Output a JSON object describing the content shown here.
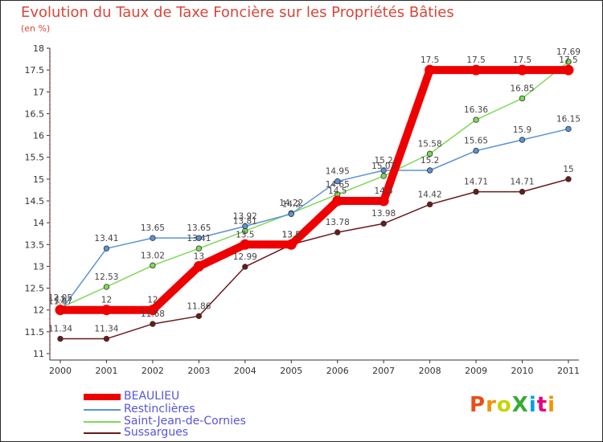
{
  "title": "Evolution du Taux de Taxe Foncière sur les Propriétés Bâties",
  "unit": "(en %)",
  "logo": "ProXiti",
  "logo_colors": [
    "#e94e1b",
    "#f39200",
    "#c8d400",
    "#3aaa35",
    "#00a0e3",
    "#e5007d",
    "#f39200"
  ],
  "chart_data": {
    "type": "line",
    "title": "Evolution du Taux de Taxe Foncière sur les Propriétés Bâties",
    "ylabel": "(en %)",
    "xlabel": "",
    "x": [
      "2000",
      "2001",
      "2002",
      "2003",
      "2004",
      "2005",
      "2006",
      "2007",
      "2008",
      "2009",
      "2010",
      "2011"
    ],
    "ylim": [
      11,
      18
    ],
    "yticks": [
      "11",
      "11.5",
      "12",
      "12.5",
      "13",
      "13.5",
      "14",
      "14.5",
      "15",
      "15.5",
      "16",
      "16.5",
      "17",
      "17.5",
      "18"
    ],
    "series": [
      {
        "name": "Sussargues",
        "color": "#6b1a1a",
        "values": [
          11.34,
          11.34,
          11.68,
          11.86,
          12.99,
          13.5,
          13.78,
          13.98,
          14.42,
          14.71,
          14.71,
          15
        ],
        "labels": [
          "11.34",
          "11.34",
          "11.68",
          "11.86",
          "12.99",
          "13.5",
          "13.78",
          "13.98",
          "14.42",
          "14.71",
          "14.71",
          "15"
        ]
      },
      {
        "name": "Saint-Jean-de-Cornies",
        "color": "#7ed957",
        "values": [
          12.05,
          12.53,
          13.02,
          13.41,
          13.81,
          14.22,
          14.65,
          15.07,
          15.58,
          16.36,
          16.85,
          17.69
        ],
        "labels": [
          "12.05",
          "12.53",
          "13.02",
          "13.41",
          "13.81",
          "14.22",
          "14.65",
          "15.07",
          "15.58",
          "16.36",
          "16.85",
          "17.69"
        ]
      },
      {
        "name": "Restinclières",
        "color": "#5b93d3",
        "values": [
          11.97,
          13.41,
          13.65,
          13.65,
          13.92,
          14.2,
          14.95,
          15.2,
          15.2,
          15.65,
          15.9,
          16.15
        ],
        "labels": [
          "11.97",
          "13.41",
          "13.65",
          "13.65",
          "13.92",
          "14.2",
          "14.95",
          "15.2",
          "15.2",
          "15.65",
          "15.9",
          "16.15"
        ]
      },
      {
        "name": "BEAULIEU",
        "color": "#ee0000",
        "values": [
          12,
          12,
          12,
          13,
          13.5,
          13.5,
          14.5,
          14.5,
          17.5,
          17.5,
          17.5,
          17.5
        ],
        "labels": [
          "12",
          "12",
          "12",
          "13",
          "13.5",
          "13.5",
          "14.5",
          "14.5",
          "17.5",
          "17.5",
          "17.5",
          "17.5"
        ]
      }
    ],
    "legend": [
      "BEAULIEU",
      "Restinclières",
      "Saint-Jean-de-Cornies",
      "Sussargues"
    ],
    "legend_position": "bottom-left",
    "grid": false
  }
}
